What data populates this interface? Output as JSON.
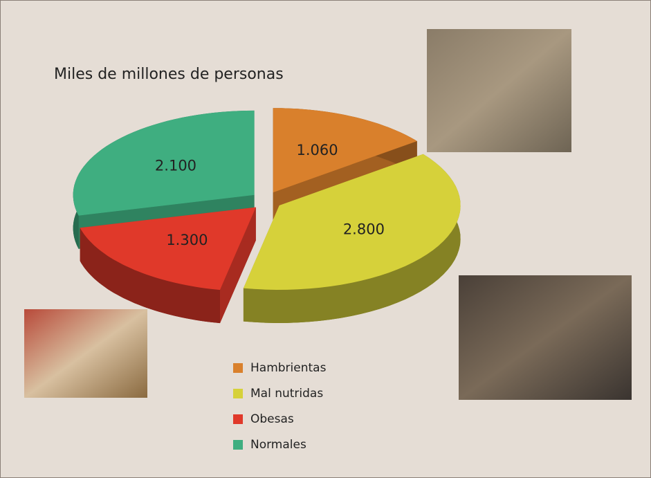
{
  "chart_data": {
    "type": "pie",
    "title": "Miles de millones de personas",
    "categories": [
      "Hambrientas",
      "Mal nutridas",
      "Obesas",
      "Normales"
    ],
    "values": [
      1.06,
      2.8,
      1.3,
      2.1
    ],
    "value_labels": [
      "1.060",
      "2.800",
      "1.300",
      "2.100"
    ],
    "colors": [
      "#d9802c",
      "#d6d13a",
      "#e0392a",
      "#3fae80"
    ]
  }
}
